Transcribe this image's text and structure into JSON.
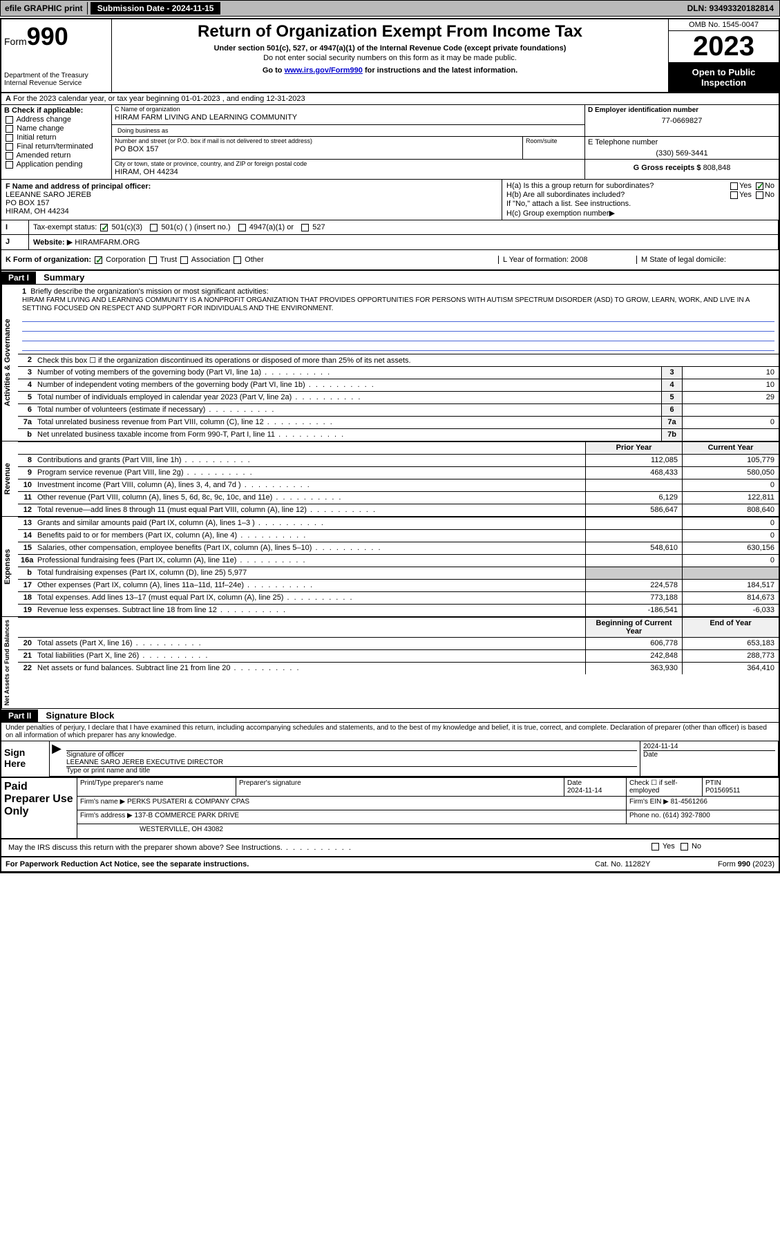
{
  "topbar": {
    "efile": "efile GRAPHIC print",
    "subdate_label": "Submission Date - 2024-11-15",
    "dln": "DLN: 93493320182814"
  },
  "header": {
    "form_label": "Form",
    "form_num": "990",
    "dept": "Department of the Treasury\nInternal Revenue Service",
    "title": "Return of Organization Exempt From Income Tax",
    "sub": "Under section 501(c), 527, or 4947(a)(1) of the Internal Revenue Code (except private foundations)",
    "sub2": "Do not enter social security numbers on this form as it may be made public.",
    "goto_pre": "Go to ",
    "goto_link": "www.irs.gov/Form990",
    "goto_post": " for instructions and the latest information.",
    "omb": "OMB No. 1545-0047",
    "year": "2023",
    "inspect": "Open to Public Inspection"
  },
  "row_a": "For the 2023 calendar year, or tax year beginning 01-01-2023   , and ending 12-31-2023",
  "col_b": {
    "label": "B Check if applicable:",
    "items": [
      "Address change",
      "Name change",
      "Initial return",
      "Final return/terminated",
      "Amended return",
      "Application pending"
    ]
  },
  "col_c": {
    "name_lbl": "C Name of organization",
    "name": "HIRAM FARM LIVING AND LEARNING COMMUNITY",
    "dba_lbl": "Doing business as",
    "addr_lbl": "Number and street (or P.O. box if mail is not delivered to street address)",
    "addr": "PO BOX 157",
    "suite_lbl": "Room/suite",
    "city_lbl": "City or town, state or province, country, and ZIP or foreign postal code",
    "city": "HIRAM, OH  44234"
  },
  "col_d": {
    "ein_lbl": "D Employer identification number",
    "ein": "77-0669827",
    "tel_lbl": "E Telephone number",
    "tel": "(330) 569-3441",
    "gross_lbl": "G Gross receipts $",
    "gross": "808,848"
  },
  "col_f": {
    "lbl": "F Name and address of principal officer:",
    "name": "LEEANNE SARO JEREB",
    "addr": "PO BOX 157",
    "city": "HIRAM, OH  44234"
  },
  "col_h": {
    "ha": "H(a)  Is this a group return for subordinates?",
    "hb": "H(b)  Are all subordinates included?",
    "hb2": "If \"No,\" attach a list. See instructions.",
    "hc": "H(c)  Group exemption number ",
    "yes": "Yes",
    "no": "No"
  },
  "row_i": {
    "lbl": "Tax-exempt status:",
    "o1": "501(c)(3)",
    "o2": "501(c) (  ) (insert no.)",
    "o3": "4947(a)(1) or",
    "o4": "527"
  },
  "row_j": {
    "lbl": "Website: ",
    "val": "HIRAMFARM.ORG"
  },
  "row_k": {
    "lbl": "K Form of organization:",
    "o1": "Corporation",
    "o2": "Trust",
    "o3": "Association",
    "o4": "Other",
    "l": "L Year of formation: 2008",
    "m": "M State of legal domicile:"
  },
  "part1": {
    "hdr": "Part I",
    "title": "Summary"
  },
  "mission": {
    "num": "1",
    "lbl": "Briefly describe the organization's mission or most significant activities:",
    "text": "HIRAM FARM LIVING AND LEARNING COMMUNITY IS A NONPROFIT ORGANIZATION THAT PROVIDES OPPORTUNITIES FOR PERSONS WITH AUTISM SPECTRUM DISORDER (ASD) TO GROW, LEARN, WORK, AND LIVE IN A SETTING FOCUSED ON RESPECT AND SUPPORT FOR INDIVIDUALS AND THE ENVIRONMENT."
  },
  "line2": "Check this box ☐ if the organization discontinued its operations or disposed of more than 25% of its net assets.",
  "gov_rows": [
    {
      "n": "3",
      "d": "Number of voting members of the governing body (Part VI, line 1a)",
      "b": "3",
      "v": "10"
    },
    {
      "n": "4",
      "d": "Number of independent voting members of the governing body (Part VI, line 1b)",
      "b": "4",
      "v": "10"
    },
    {
      "n": "5",
      "d": "Total number of individuals employed in calendar year 2023 (Part V, line 2a)",
      "b": "5",
      "v": "29"
    },
    {
      "n": "6",
      "d": "Total number of volunteers (estimate if necessary)",
      "b": "6",
      "v": ""
    },
    {
      "n": "7a",
      "d": "Total unrelated business revenue from Part VIII, column (C), line 12",
      "b": "7a",
      "v": "0"
    },
    {
      "n": "b",
      "d": "Net unrelated business taxable income from Form 990-T, Part I, line 11",
      "b": "7b",
      "v": ""
    }
  ],
  "rev_hdr": {
    "prior": "Prior Year",
    "curr": "Current Year"
  },
  "rev_rows": [
    {
      "n": "8",
      "d": "Contributions and grants (Part VIII, line 1h)",
      "p": "112,085",
      "c": "105,779"
    },
    {
      "n": "9",
      "d": "Program service revenue (Part VIII, line 2g)",
      "p": "468,433",
      "c": "580,050"
    },
    {
      "n": "10",
      "d": "Investment income (Part VIII, column (A), lines 3, 4, and 7d )",
      "p": "",
      "c": "0"
    },
    {
      "n": "11",
      "d": "Other revenue (Part VIII, column (A), lines 5, 6d, 8c, 9c, 10c, and 11e)",
      "p": "6,129",
      "c": "122,811"
    },
    {
      "n": "12",
      "d": "Total revenue—add lines 8 through 11 (must equal Part VIII, column (A), line 12)",
      "p": "586,647",
      "c": "808,640"
    }
  ],
  "exp_rows": [
    {
      "n": "13",
      "d": "Grants and similar amounts paid (Part IX, column (A), lines 1–3 )",
      "p": "",
      "c": "0"
    },
    {
      "n": "14",
      "d": "Benefits paid to or for members (Part IX, column (A), line 4)",
      "p": "",
      "c": "0"
    },
    {
      "n": "15",
      "d": "Salaries, other compensation, employee benefits (Part IX, column (A), lines 5–10)",
      "p": "548,610",
      "c": "630,156"
    },
    {
      "n": "16a",
      "d": "Professional fundraising fees (Part IX, column (A), line 11e)",
      "p": "",
      "c": "0"
    },
    {
      "n": "b",
      "d": "Total fundraising expenses (Part IX, column (D), line 25) 5,977",
      "p": "",
      "c": "",
      "noval": true
    },
    {
      "n": "17",
      "d": "Other expenses (Part IX, column (A), lines 11a–11d, 11f–24e)",
      "p": "224,578",
      "c": "184,517"
    },
    {
      "n": "18",
      "d": "Total expenses. Add lines 13–17 (must equal Part IX, column (A), line 25)",
      "p": "773,188",
      "c": "814,673"
    },
    {
      "n": "19",
      "d": "Revenue less expenses. Subtract line 18 from line 12",
      "p": "-186,541",
      "c": "-6,033"
    }
  ],
  "net_hdr": {
    "prior": "Beginning of Current Year",
    "curr": "End of Year"
  },
  "net_rows": [
    {
      "n": "20",
      "d": "Total assets (Part X, line 16)",
      "p": "606,778",
      "c": "653,183"
    },
    {
      "n": "21",
      "d": "Total liabilities (Part X, line 26)",
      "p": "242,848",
      "c": "288,773"
    },
    {
      "n": "22",
      "d": "Net assets or fund balances. Subtract line 21 from line 20",
      "p": "363,930",
      "c": "364,410"
    }
  ],
  "vtabs": {
    "gov": "Activities & Governance",
    "rev": "Revenue",
    "exp": "Expenses",
    "net": "Net Assets or Fund Balances"
  },
  "part2": {
    "hdr": "Part II",
    "title": "Signature Block"
  },
  "sig": {
    "text": "Under penalties of perjury, I declare that I have examined this return, including accompanying schedules and statements, and to the best of my knowledge and belief, it is true, correct, and complete. Declaration of preparer (other than officer) is based on all information of which preparer has any knowledge.",
    "here": "Sign Here",
    "sig_lbl": "Signature of officer",
    "sig_date": "2024-11-14",
    "date_lbl": "Date",
    "name": "LEEANNE SARO JEREB  EXECUTIVE DIRECTOR",
    "name_lbl": "Type or print name and title"
  },
  "prep": {
    "left": "Paid Preparer Use Only",
    "h1": "Print/Type preparer's name",
    "h2": "Preparer's signature",
    "h3": "Date",
    "h3v": "2024-11-14",
    "h4": "Check ☐ if self-employed",
    "h5": "PTIN",
    "h5v": "P01569511",
    "firm_lbl": "Firm's name   ",
    "firm": "PERKS PUSATERI & COMPANY CPAS",
    "ein_lbl": "Firm's EIN ",
    "ein": "81-4561266",
    "addr_lbl": "Firm's address ",
    "addr": "137-B COMMERCE PARK DRIVE",
    "addr2": "WESTERVILLE, OH  43082",
    "ph_lbl": "Phone no. ",
    "ph": "(614) 392-7800"
  },
  "discuss": "May the IRS discuss this return with the preparer shown above? See Instructions.",
  "footer": {
    "left": "For Paperwork Reduction Act Notice, see the separate instructions.",
    "mid": "Cat. No. 11282Y",
    "right": "Form 990 (2023)"
  }
}
